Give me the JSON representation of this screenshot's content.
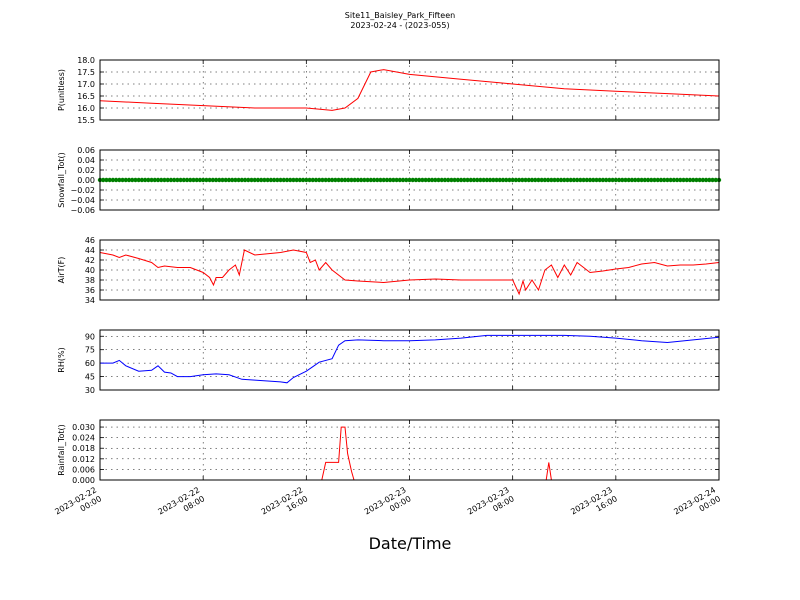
{
  "title": "Site11_Baisley_Park_Fifteen",
  "subtitle": "2023-02-24 - (2023-055)",
  "xlabel": "Date/Time",
  "chart_data": [
    {
      "type": "line",
      "ylabel": "P(unitless)",
      "ylim": [
        15.5,
        18.0
      ],
      "yticks": [
        "15.5",
        "16.0",
        "16.5",
        "17.0",
        "17.5",
        "18.0"
      ],
      "color": "#ff0000",
      "x_hours": [
        0,
        4,
        8,
        12,
        16,
        18,
        19,
        20,
        21,
        22,
        24,
        28,
        32,
        36,
        40,
        44,
        48
      ],
      "values": [
        16.3,
        16.2,
        16.1,
        16.0,
        16.0,
        15.9,
        16.0,
        16.4,
        17.5,
        17.6,
        17.4,
        17.2,
        17.0,
        16.8,
        16.7,
        16.6,
        16.5
      ]
    },
    {
      "type": "scatter",
      "ylabel": "Snowfall_Tot()",
      "ylim": [
        -0.06,
        0.06
      ],
      "yticks": [
        "−0.06",
        "−0.04",
        "−0.02",
        "0.00",
        "0.02",
        "0.04",
        "0.06"
      ],
      "color": "#008000",
      "constant_value": 0.0
    },
    {
      "type": "line",
      "ylabel": "AirT(F)",
      "ylim": [
        34,
        46
      ],
      "yticks": [
        "34",
        "36",
        "38",
        "40",
        "42",
        "44",
        "46"
      ],
      "color": "#ff0000",
      "x_hours": [
        0,
        1,
        1.5,
        2,
        3,
        4,
        4.5,
        5,
        6,
        7,
        8,
        8.5,
        8.8,
        9,
        9.5,
        10,
        10.5,
        10.8,
        11.2,
        12,
        14,
        15,
        16,
        16.3,
        16.7,
        17,
        17.5,
        18,
        19,
        20,
        22,
        24,
        26,
        28,
        30,
        32,
        32.5,
        32.8,
        33,
        33.5,
        34,
        34.5,
        35,
        35.5,
        36,
        36.5,
        37,
        37.5,
        38,
        39,
        40,
        41,
        42,
        43,
        44,
        45,
        46,
        47,
        48
      ],
      "values": [
        43.5,
        43,
        42.5,
        43,
        42.3,
        41.5,
        40.5,
        40.8,
        40.5,
        40.5,
        39.5,
        38.5,
        37,
        38.5,
        38.5,
        40,
        41,
        39,
        44,
        43,
        43.5,
        44,
        43.5,
        41.5,
        42,
        40,
        41.5,
        40,
        38,
        37.8,
        37.5,
        38,
        38.2,
        38,
        38,
        38,
        35.2,
        37.8,
        36,
        38,
        36,
        40,
        41,
        38.5,
        41,
        39,
        41.5,
        40.5,
        39.5,
        39.8,
        40.2,
        40.5,
        41.2,
        41.5,
        40.8,
        41,
        41,
        41.2,
        41.5
      ]
    },
    {
      "type": "line",
      "ylabel": "RH(%)",
      "ylim": [
        30,
        97
      ],
      "yticks": [
        "30",
        "45",
        "60",
        "75",
        "90"
      ],
      "color": "#0000ff",
      "x_hours": [
        0,
        1,
        1.5,
        2,
        3,
        4,
        4.5,
        5,
        5.5,
        6,
        7,
        8,
        9,
        10,
        11,
        12,
        13,
        14,
        14.5,
        15,
        16,
        16.5,
        17,
        18,
        18.5,
        19,
        20,
        22,
        24,
        26,
        28,
        30,
        32,
        34,
        36,
        38,
        40,
        42,
        44,
        46,
        48
      ],
      "values": [
        60,
        60,
        63,
        57,
        51,
        52,
        57,
        50,
        49,
        45,
        45,
        47,
        48,
        47,
        42,
        41,
        40,
        39,
        38,
        44,
        51,
        56,
        61,
        65,
        80,
        85,
        86,
        85,
        85,
        86,
        88,
        91,
        91,
        91,
        91,
        90,
        88,
        85,
        83,
        86,
        89
      ]
    },
    {
      "type": "line",
      "ylabel": "Rainfall_Tot()",
      "ylim": [
        0,
        0.034
      ],
      "yticks": [
        "0.000",
        "0.006",
        "0.012",
        "0.018",
        "0.024",
        "0.030"
      ],
      "color": "#ff0000",
      "x_hours": [
        0,
        17.2,
        17.5,
        18.5,
        18.7,
        19,
        19.2,
        19.5,
        19.7,
        34.6,
        34.8,
        35.0,
        48
      ],
      "values": [
        0,
        0,
        0.01,
        0.01,
        0.03,
        0.03,
        0.015,
        0.005,
        0,
        0,
        0.01,
        0,
        0
      ]
    }
  ],
  "xaxis": {
    "range_hours": [
      0,
      48
    ],
    "grid": true,
    "ticks": [
      {
        "h": 0,
        "label": [
          "2023-02-22",
          "00:00"
        ]
      },
      {
        "h": 8,
        "label": [
          "2023-02-22",
          "08:00"
        ]
      },
      {
        "h": 16,
        "label": [
          "2023-02-22",
          "16:00"
        ]
      },
      {
        "h": 24,
        "label": [
          "2023-02-23",
          "00:00"
        ]
      },
      {
        "h": 32,
        "label": [
          "2023-02-23",
          "08:00"
        ]
      },
      {
        "h": 40,
        "label": [
          "2023-02-23",
          "16:00"
        ]
      },
      {
        "h": 48,
        "label": [
          "2023-02-24",
          "00:00"
        ]
      }
    ]
  }
}
